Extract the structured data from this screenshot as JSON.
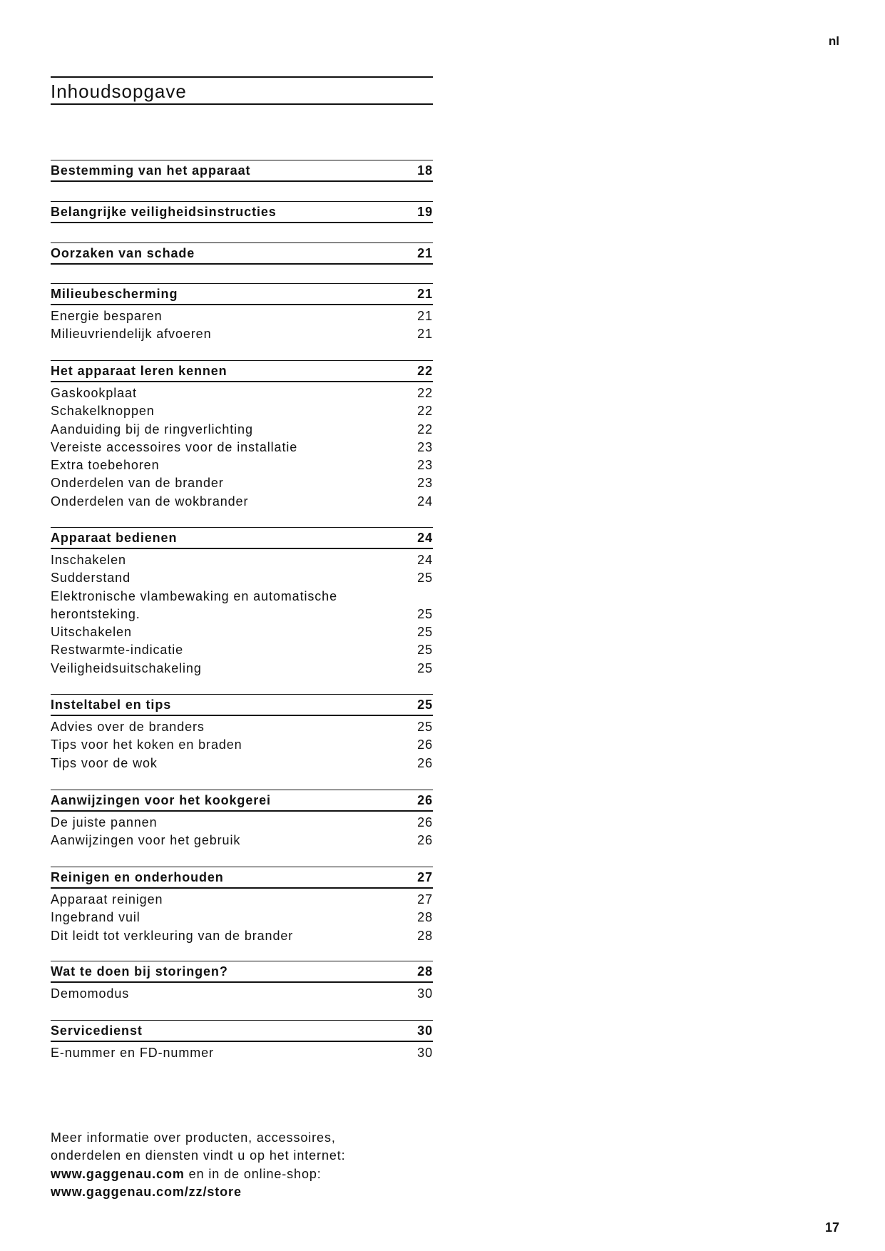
{
  "language_tag": "nl",
  "title": "Inhoudsopgave",
  "sections": [
    {
      "label": "Bestemming van het apparaat",
      "page": "18",
      "items": []
    },
    {
      "label": "Belangrijke veiligheidsinstructies",
      "page": "19",
      "items": []
    },
    {
      "label": "Oorzaken van schade",
      "page": "21",
      "items": []
    },
    {
      "label": "Milieubescherming",
      "page": "21",
      "items": [
        {
          "label": "Energie besparen",
          "page": "21"
        },
        {
          "label": "Milieuvriendelijk afvoeren",
          "page": "21"
        }
      ]
    },
    {
      "label": "Het apparaat leren kennen",
      "page": "22",
      "items": [
        {
          "label": "Gaskookplaat",
          "page": "22"
        },
        {
          "label": "Schakelknoppen",
          "page": "22"
        },
        {
          "label": "Aanduiding bij de ringverlichting",
          "page": "22"
        },
        {
          "label": "Vereiste accessoires voor de installatie",
          "page": "23"
        },
        {
          "label": "Extra toebehoren",
          "page": "23"
        },
        {
          "label": "Onderdelen van de brander",
          "page": "23"
        },
        {
          "label": "Onderdelen van de wokbrander",
          "page": "24"
        }
      ]
    },
    {
      "label": "Apparaat bedienen",
      "page": "24",
      "items": [
        {
          "label": "Inschakelen",
          "page": "24"
        },
        {
          "label": "Sudderstand",
          "page": "25"
        },
        {
          "label": "Elektronische vlambewaking en automatische herontsteking.",
          "page": "25"
        },
        {
          "label": "Uitschakelen",
          "page": "25"
        },
        {
          "label": "Restwarmte-indicatie",
          "page": "25"
        },
        {
          "label": "Veiligheidsuitschakeling",
          "page": "25"
        }
      ]
    },
    {
      "label": "Insteltabel en tips",
      "page": "25",
      "items": [
        {
          "label": "Advies over de branders",
          "page": "25"
        },
        {
          "label": "Tips voor het koken en braden",
          "page": "26"
        },
        {
          "label": "Tips voor de wok",
          "page": "26"
        }
      ]
    },
    {
      "label": "Aanwijzingen voor het kookgerei",
      "page": "26",
      "items": [
        {
          "label": "De juiste pannen",
          "page": "26"
        },
        {
          "label": "Aanwijzingen voor het gebruik",
          "page": "26"
        }
      ]
    },
    {
      "label": "Reinigen en onderhouden",
      "page": "27",
      "items": [
        {
          "label": "Apparaat reinigen",
          "page": "27"
        },
        {
          "label": "Ingebrand vuil",
          "page": "28"
        },
        {
          "label": "Dit leidt tot verkleuring van de brander",
          "page": "28"
        }
      ]
    },
    {
      "label": "Wat te doen bij storingen?",
      "page": "28",
      "items": [
        {
          "label": "Demomodus",
          "page": "30"
        }
      ]
    },
    {
      "label": "Servicedienst",
      "page": "30",
      "items": [
        {
          "label": "E-nummer en FD-nummer",
          "page": "30"
        }
      ]
    }
  ],
  "footer": {
    "line1": "Meer informatie over producten, accessoires,",
    "line2": "onderdelen en diensten vindt u op het internet:",
    "url1": "www.gaggenau.com",
    "line3_rest": " en in de online-shop:",
    "url2": "www.gaggenau.com/zz/store"
  },
  "page_number": "17"
}
